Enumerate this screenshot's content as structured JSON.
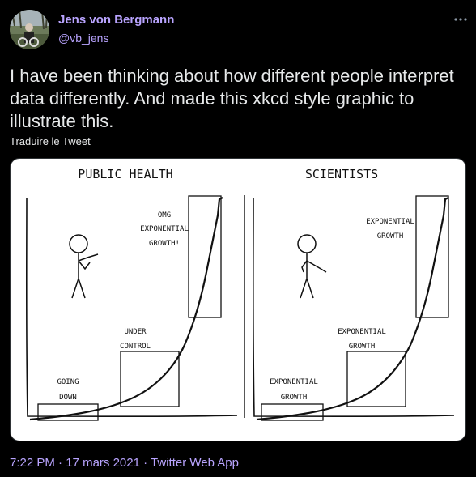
{
  "author": {
    "display_name": "Jens von Bergmann",
    "handle": "@vb_jens"
  },
  "tweet": {
    "text": "I have been thinking about how different people interpret data differently. And made this xkcd style graphic to illustrate this.",
    "translate_label": "Traduire le Tweet"
  },
  "comic": {
    "left_panel": {
      "title": "PUBLIC HEALTH",
      "boxes": [
        {
          "lines": [
            "GOING",
            "DOWN"
          ]
        },
        {
          "lines": [
            "UNDER",
            "CONTROL"
          ]
        },
        {
          "lines": [
            "OMG",
            "EXPONENTIAL",
            "GROWTH!"
          ]
        }
      ]
    },
    "right_panel": {
      "title": "SCIENTISTS",
      "boxes": [
        {
          "lines": [
            "EXPONENTIAL",
            "GROWTH"
          ]
        },
        {
          "lines": [
            "EXPONENTIAL",
            "GROWTH"
          ]
        },
        {
          "lines": [
            "EXPONENTIAL",
            "GROWTH"
          ]
        }
      ]
    }
  },
  "meta": {
    "time": "7:22 PM",
    "separator": "·",
    "date": "17 mars 2021",
    "source": "Twitter Web App"
  },
  "icons": {
    "avatar": "avatar-photo",
    "more": "more-dots-icon"
  }
}
